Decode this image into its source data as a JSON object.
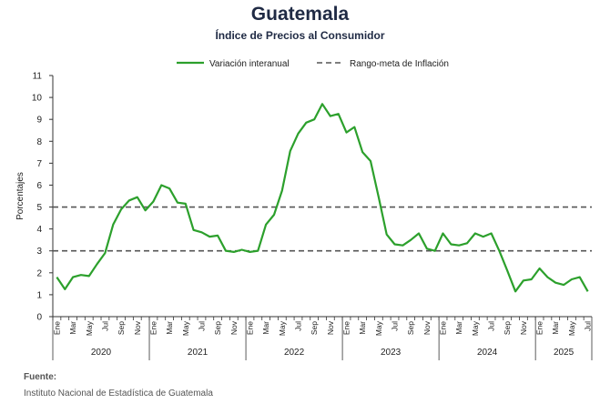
{
  "header": {
    "title": "Guatemala",
    "subtitle": "Índice de Precios al Consumidor"
  },
  "source": {
    "label": "Fuente:",
    "text": "Instituto Nacional de Estadística de Guatemala"
  },
  "chart_data": {
    "type": "line",
    "ylabel": "Porcentajes",
    "ylim": [
      0,
      11
    ],
    "yticks": [
      "0",
      "1",
      "2",
      "3",
      "4",
      "5",
      "6",
      "7",
      "8",
      "9",
      "10",
      "11"
    ],
    "grid": false,
    "legend_placement": "top",
    "month_labels": [
      "Ene",
      "Mar",
      "May",
      "Jul",
      "Sep",
      "Nov"
    ],
    "years": [
      "2020",
      "2021",
      "2022",
      "2023",
      "2024",
      "2025"
    ],
    "series": [
      {
        "name": "Variación interanual",
        "color": "#2ca02c",
        "style": "solid",
        "values": [
          1.8,
          1.25,
          1.8,
          1.9,
          1.85,
          2.4,
          2.9,
          4.2,
          4.9,
          5.3,
          5.45,
          4.85,
          5.25,
          6.0,
          5.85,
          5.2,
          5.15,
          3.95,
          3.85,
          3.65,
          3.7,
          3.0,
          2.95,
          3.05,
          2.95,
          3.0,
          4.2,
          4.65,
          5.75,
          7.55,
          8.35,
          8.85,
          9.0,
          9.7,
          9.15,
          9.25,
          8.4,
          8.65,
          7.5,
          7.1,
          5.45,
          3.75,
          3.3,
          3.25,
          3.5,
          3.8,
          3.1,
          3.0,
          3.8,
          3.3,
          3.25,
          3.35,
          3.8,
          3.65,
          3.8,
          3.0,
          2.1,
          1.15,
          1.65,
          1.7,
          2.2,
          1.8,
          1.55,
          1.45,
          1.7,
          1.8,
          1.15
        ]
      },
      {
        "name": "Rango-meta de Inflación",
        "color": "#555555",
        "style": "dashed",
        "lines": [
          3,
          5
        ]
      }
    ]
  }
}
